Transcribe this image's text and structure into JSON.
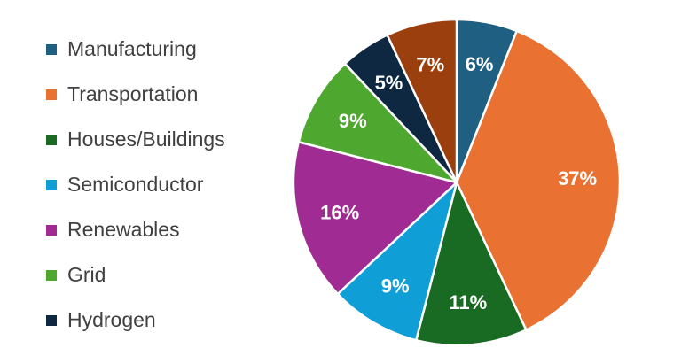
{
  "chart_data": {
    "type": "pie",
    "title": "",
    "legend_position": "left",
    "start_angle_deg": 0,
    "direction": "clockwise",
    "slices": [
      {
        "name": "Manufacturing",
        "value": 6,
        "label": "6%",
        "color": "#1f5f82"
      },
      {
        "name": "Transportation",
        "value": 37,
        "label": "37%",
        "color": "#e97132"
      },
      {
        "name": "Houses/Buildings",
        "value": 11,
        "label": "11%",
        "color": "#196b24"
      },
      {
        "name": "Semiconductor",
        "value": 9,
        "label": "9%",
        "color": "#0f9ed5"
      },
      {
        "name": "Renewables",
        "value": 16,
        "label": "16%",
        "color": "#a02b93"
      },
      {
        "name": "Grid",
        "value": 9,
        "label": "9%",
        "color": "#4ea72e"
      },
      {
        "name": "Hydrogen",
        "value": 5,
        "label": "5%",
        "color": "#0e2841"
      },
      {
        "name": "",
        "value": 7,
        "label": "7%",
        "color": "#9c3f0e"
      }
    ]
  }
}
